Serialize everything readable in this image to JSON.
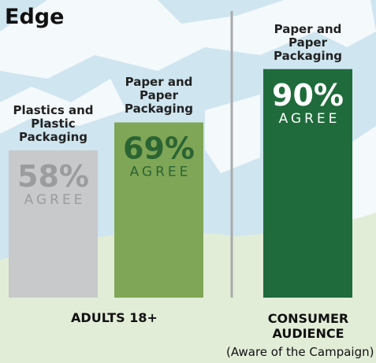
{
  "chart_data": {
    "type": "bar",
    "title": "Edge",
    "categories": [
      "Plastics and Plastic Packaging",
      "Paper and Paper Packaging",
      "Paper and Paper Packaging"
    ],
    "values": [
      58,
      69,
      90
    ],
    "value_labels": [
      "58%",
      "69%",
      "90%"
    ],
    "bar_text": "AGREE",
    "colors": [
      "#c8c9cb",
      "#7fa656",
      "#1f6b3b"
    ],
    "label_colors": [
      "#9b9c9e",
      "#2b6433",
      "#ffffff"
    ],
    "groups": [
      {
        "name": "ADULTS 18+"
      },
      {
        "name": "CONSUMER AUDIENCE",
        "note": "(Aware of the Campaign)"
      }
    ]
  }
}
